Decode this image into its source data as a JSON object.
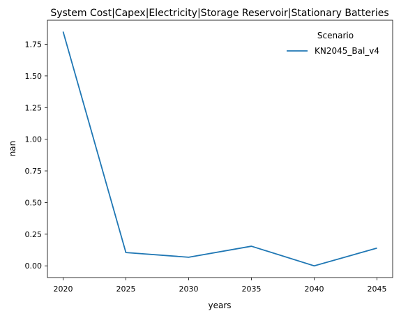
{
  "chart_data": {
    "type": "line",
    "title": "System Cost|Capex|Electricity|Storage Reservoir|Stationary Batteries",
    "xlabel": "years",
    "ylabel": "nan",
    "x": [
      2020,
      2025,
      2030,
      2035,
      2040,
      2045
    ],
    "xticks": [
      "2020",
      "2025",
      "2030",
      "2035",
      "2040",
      "2045"
    ],
    "yticks": [
      0.0,
      0.25,
      0.5,
      0.75,
      1.0,
      1.25,
      1.5,
      1.75
    ],
    "ytick_labels": [
      "0.00",
      "0.25",
      "0.50",
      "0.75",
      "1.00",
      "1.25",
      "1.50",
      "1.75"
    ],
    "xlim": [
      2018.75,
      2046.25
    ],
    "ylim": [
      -0.0925,
      1.94
    ],
    "legend": {
      "title": "Scenario",
      "position": "upper-right"
    },
    "series": [
      {
        "name": "KN2045_Bal_v4",
        "color": "#1f77b4",
        "values": [
          1.85,
          0.105,
          0.068,
          0.155,
          0.0,
          0.14
        ]
      }
    ],
    "grid": false
  }
}
